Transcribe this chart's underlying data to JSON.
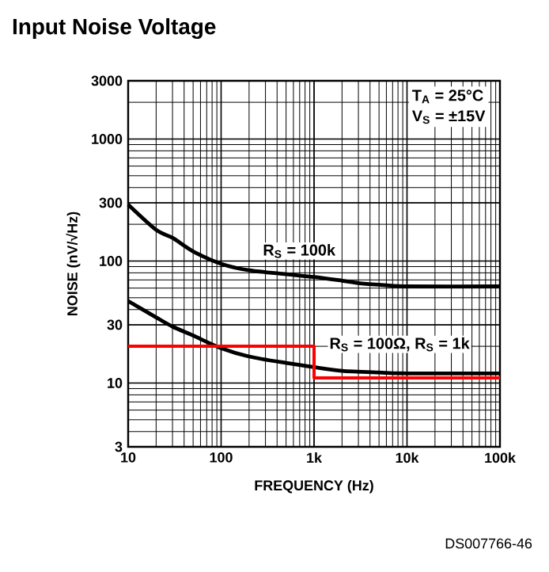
{
  "chart_data": {
    "type": "line",
    "title": "Input Noise Voltage",
    "xlabel": "FREQUENCY (Hz)",
    "ylabel": "NOISE (nV/√Hz)",
    "log": "xy",
    "grid": true,
    "xlim": [
      10,
      100000
    ],
    "ylim": [
      3,
      3000
    ],
    "xticks": [
      10,
      100,
      {
        "value": 1000,
        "label": "1k"
      },
      {
        "value": 10000,
        "label": "10k"
      },
      {
        "value": 100000,
        "label": "100k"
      }
    ],
    "yticks": [
      3,
      10,
      30,
      100,
      300,
      1000,
      3000
    ],
    "annotations": [
      "T$_{A}$ = 25°C",
      "V$_{S}$ = ±15V",
      "DS007766-46"
    ],
    "series": [
      {
        "name": "R$_{S}$ = 100k",
        "color": "#000000",
        "x": [
          10,
          20,
          30,
          50,
          100,
          200,
          500,
          1000,
          2000,
          3000,
          5000,
          10000,
          100000
        ],
        "values": [
          290,
          180,
          155,
          120,
          95,
          84,
          78,
          74,
          69,
          66,
          64,
          62,
          62
        ]
      },
      {
        "name": "R$_{S}$ = 100Ω, R$_{S}$ = 1k",
        "color": "#000000",
        "x": [
          10,
          20,
          30,
          50,
          100,
          200,
          500,
          1000,
          2000,
          5000,
          10000,
          100000
        ],
        "values": [
          47,
          34.5,
          29,
          24.5,
          19.3,
          16.5,
          14.6,
          13.5,
          12.6,
          12.2,
          12,
          12
        ]
      },
      {
        "type": "step",
        "color": "#ff0000",
        "x": [
          10,
          1000,
          100000
        ],
        "values": [
          20,
          11,
          11
        ]
      }
    ]
  }
}
